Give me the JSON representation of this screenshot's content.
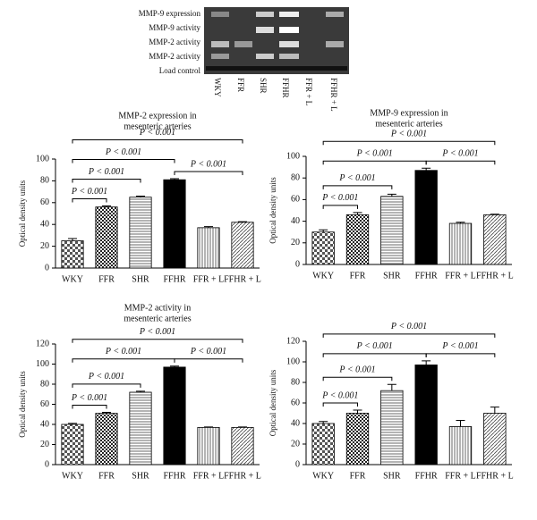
{
  "blot": {
    "rows": [
      "MMP-9 expression",
      "MMP-9 activity",
      "MMP-2 activity",
      "MMP-2 activity",
      "Load control"
    ],
    "lanes": [
      "WKY",
      "FFR",
      "SHR",
      "FFHR",
      "FFR + L",
      "FFHR + L"
    ]
  },
  "chart_data": [
    {
      "type": "bar",
      "title": [
        "MMP-2 expression in",
        "mesenteric arteries"
      ],
      "y_label": "Optical density units",
      "categories": [
        "WKY",
        "FFR",
        "SHR",
        "FFHR",
        "FFR + L",
        "FFHR + L"
      ],
      "values": [
        25,
        56,
        65,
        81,
        37,
        42
      ],
      "errors": [
        2,
        1,
        1,
        1,
        1,
        0.5
      ],
      "ylim": [
        0,
        100
      ],
      "yticks": [
        0,
        20,
        40,
        60,
        80,
        100
      ],
      "comparisons": [
        {
          "between": [
            0,
            1
          ],
          "label": "P < 0.001"
        },
        {
          "between": [
            0,
            2
          ],
          "label": "P < 0.001"
        },
        {
          "between": [
            0,
            3
          ],
          "label": "P < 0.001"
        },
        {
          "between": [
            3,
            5
          ],
          "label": "P < 0.001"
        },
        {
          "between": [
            0,
            5
          ],
          "label": "P < 0.001"
        }
      ]
    },
    {
      "type": "bar",
      "title": [
        "MMP-9 expression in",
        "mesenteric arteries"
      ],
      "y_label": "Optical density units",
      "categories": [
        "WKY",
        "FFR",
        "SHR",
        "FFHR",
        "FFR + L",
        "FFHR + L"
      ],
      "values": [
        30,
        46,
        63,
        87,
        38,
        46
      ],
      "errors": [
        2,
        2,
        2,
        2,
        1,
        0.5
      ],
      "ylim": [
        0,
        100
      ],
      "yticks": [
        0,
        20,
        40,
        60,
        80,
        100
      ],
      "comparisons": [
        {
          "between": [
            0,
            1
          ],
          "label": "P < 0.001"
        },
        {
          "between": [
            0,
            2
          ],
          "label": "P < 0.001"
        },
        {
          "between": [
            0,
            3
          ],
          "label": "P < 0.001"
        },
        {
          "between": [
            3,
            5
          ],
          "label": "P < 0.001"
        },
        {
          "between": [
            0,
            5
          ],
          "label": "P < 0.001"
        }
      ]
    },
    {
      "type": "bar",
      "title": [
        "MMP-2 activity in",
        "mesenteric arteries"
      ],
      "y_label": "Optical density units",
      "categories": [
        "WKY",
        "FFR",
        "SHR",
        "FFHR",
        "FFR + L",
        "FFHR + L"
      ],
      "values": [
        40,
        51,
        72,
        97,
        37,
        37
      ],
      "errors": [
        1,
        1,
        1,
        1,
        0.5,
        0.5
      ],
      "ylim": [
        0,
        120
      ],
      "yticks": [
        0,
        20,
        40,
        60,
        80,
        100,
        120
      ],
      "comparisons": [
        {
          "between": [
            0,
            1
          ],
          "label": "P < 0.001"
        },
        {
          "between": [
            0,
            2
          ],
          "label": "P < 0.001"
        },
        {
          "between": [
            0,
            3
          ],
          "label": "P < 0.001"
        },
        {
          "between": [
            3,
            5
          ],
          "label": "P < 0.001"
        },
        {
          "between": [
            0,
            5
          ],
          "label": "P < 0.001"
        }
      ]
    },
    {
      "type": "bar",
      "y_label": "Optical density units",
      "categories": [
        "WKY",
        "FFR",
        "SHR",
        "FFHR",
        "FFR + L",
        "FFHR + L"
      ],
      "values": [
        40,
        50,
        72,
        97,
        37,
        50
      ],
      "errors": [
        2,
        3,
        6,
        4,
        6,
        6
      ],
      "ylim": [
        0,
        120
      ],
      "yticks": [
        0,
        20,
        40,
        60,
        80,
        100,
        120
      ],
      "comparisons": [
        {
          "between": [
            0,
            1
          ],
          "label": "P < 0.001"
        },
        {
          "between": [
            0,
            2
          ],
          "label": "P < 0.001"
        },
        {
          "between": [
            0,
            3
          ],
          "label": "P < 0.001"
        },
        {
          "between": [
            3,
            5
          ],
          "label": "P < 0.001"
        },
        {
          "between": [
            0,
            5
          ],
          "label": "P < 0.001"
        }
      ]
    }
  ]
}
